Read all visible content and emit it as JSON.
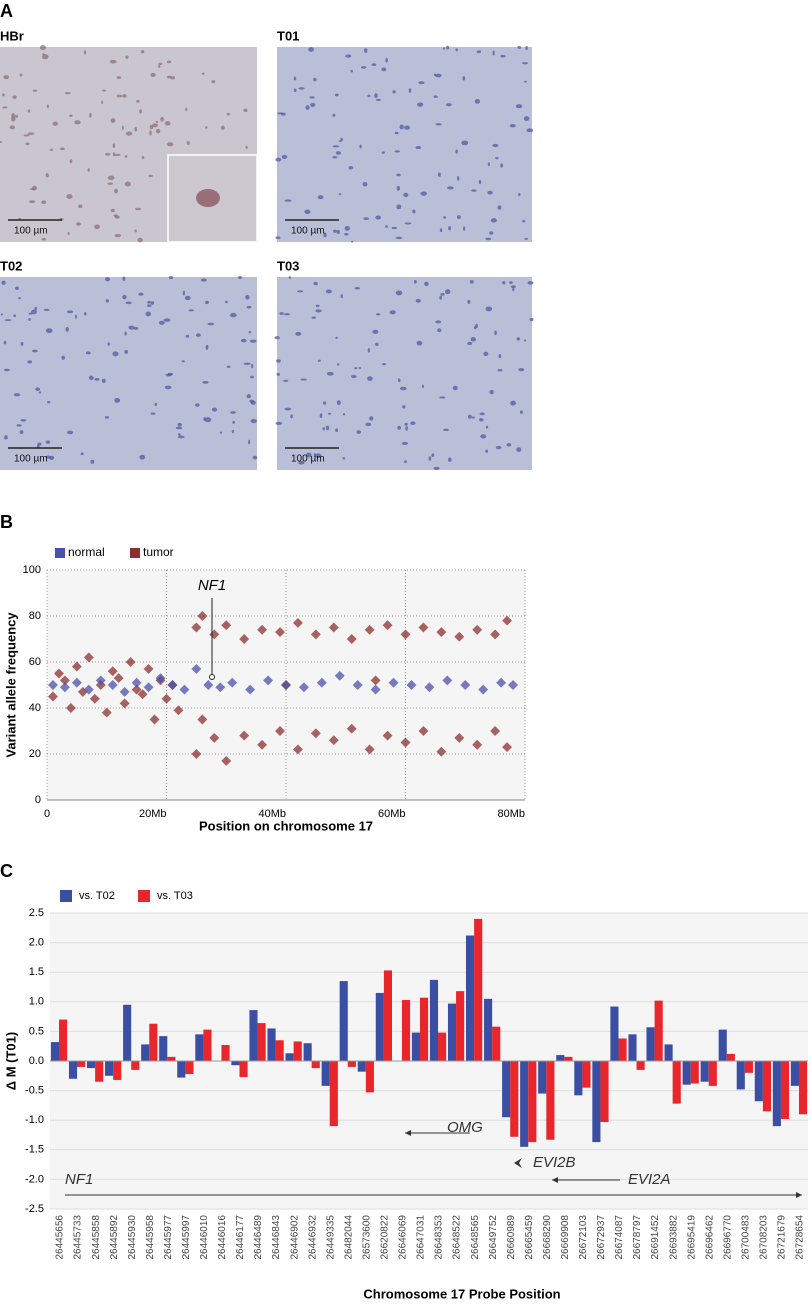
{
  "panel_labels": [
    "A",
    "B",
    "C"
  ],
  "micrographs": [
    {
      "label": "HBr",
      "scale": "100 µm"
    },
    {
      "label": "T01",
      "scale": "100 µm"
    },
    {
      "label": "T02",
      "scale": "100 µm"
    },
    {
      "label": "T03",
      "scale": "100 µm"
    }
  ],
  "chart_data": [
    {
      "type": "scatter",
      "x_label": "Position on chromosome 17",
      "y_label": "Variant allele frequency",
      "annotation": "NF1",
      "xlim": [
        0,
        80
      ],
      "ylim": [
        0,
        100
      ],
      "xticks": [
        0,
        {
          "value": 20,
          "label": "20Mb"
        },
        {
          "value": 40,
          "label": "40Mb"
        },
        {
          "value": 60,
          "label": "60Mb"
        },
        {
          "value": 80,
          "label": "80Mb"
        }
      ],
      "yticks": [
        0,
        20,
        40,
        60,
        80,
        100
      ],
      "grid": true,
      "series": [
        {
          "name": "normal",
          "color": "#4b4fae",
          "x": [
            1,
            3,
            5,
            7,
            9,
            11,
            13,
            15,
            17,
            19,
            21,
            23,
            25,
            27,
            29,
            31,
            34,
            37,
            40,
            43,
            46,
            49,
            52,
            55,
            58,
            61,
            64,
            67,
            70,
            73,
            76,
            78
          ],
          "values": [
            50,
            49,
            51,
            48,
            52,
            50,
            47,
            51,
            49,
            53,
            50,
            48,
            57,
            50,
            49,
            51,
            48,
            52,
            50,
            49,
            51,
            54,
            50,
            48,
            51,
            50,
            49,
            52,
            50,
            48,
            51,
            50
          ]
        },
        {
          "name": "tumor",
          "color": "#8e2f2f",
          "x": [
            1,
            2,
            3,
            4,
            5,
            6,
            7,
            8,
            9,
            10,
            11,
            12,
            13,
            14,
            15,
            16,
            17,
            18,
            19,
            20,
            21,
            22,
            25,
            26,
            28,
            30,
            33,
            36,
            39,
            42,
            45,
            48,
            51,
            54,
            57,
            60,
            63,
            66,
            69,
            72,
            75,
            77,
            25,
            26,
            28,
            30,
            33,
            36,
            39,
            42,
            45,
            48,
            51,
            54,
            57,
            60,
            63,
            66,
            69,
            72,
            75,
            77,
            40,
            55
          ],
          "values": [
            45,
            55,
            52,
            40,
            58,
            47,
            62,
            44,
            50,
            38,
            56,
            53,
            42,
            60,
            48,
            46,
            57,
            35,
            52,
            44,
            50,
            39,
            75,
            80,
            72,
            76,
            70,
            74,
            73,
            77,
            72,
            75,
            70,
            74,
            76,
            72,
            75,
            73,
            71,
            74,
            72,
            78,
            20,
            35,
            27,
            17,
            28,
            24,
            30,
            22,
            29,
            26,
            31,
            22,
            28,
            25,
            30,
            21,
            27,
            24,
            30,
            23,
            50,
            52
          ]
        }
      ]
    },
    {
      "type": "bar",
      "y_label": "Δ M (T01)",
      "x_label": "Chromosome 17 Probe Position",
      "annotations": [
        "OMG",
        "EVI2B",
        "EVI2A",
        "NF1"
      ],
      "categories": [
        "26445656",
        "26445733",
        "26445858",
        "26445892",
        "26445930",
        "26445958",
        "26445977",
        "26445997",
        "26446010",
        "26446016",
        "26446177",
        "26446489",
        "26446843",
        "26446902",
        "26446932",
        "26449335",
        "26482044",
        "26573600",
        "26620822",
        "26646069",
        "26647031",
        "26648353",
        "26648522",
        "26648565",
        "26649752",
        "26660989",
        "26665459",
        "26668290",
        "26669908",
        "26672103",
        "26672937",
        "26674087",
        "26678797",
        "26691452",
        "26693882",
        "26695419",
        "26696462",
        "26696770",
        "26700483",
        "26708203",
        "26721679",
        "26728654"
      ],
      "ylim": [
        -2.5,
        2.5
      ],
      "yticks": [
        -2.5,
        {
          "value": -2,
          "label": "-2.0"
        },
        -1.5,
        {
          "value": -1,
          "label": "-1.0"
        },
        -0.5,
        {
          "value": 0,
          "label": "0.0"
        },
        0.5,
        {
          "value": 1,
          "label": "1.0"
        },
        1.5,
        {
          "value": 2,
          "label": "2.0"
        },
        2.5
      ],
      "grid": true,
      "series": [
        {
          "name": "vs. T02",
          "color": "#3a4fa3",
          "values": [
            0.32,
            -0.3,
            -0.12,
            -0.25,
            0.95,
            0.28,
            0.42,
            -0.28,
            0.45,
            0,
            -0.07,
            0.86,
            0.55,
            0.13,
            0.3,
            -0.42,
            1.35,
            -0.18,
            1.15,
            0,
            0.48,
            1.37,
            0.97,
            2.12,
            1.05,
            -0.95,
            -1.45,
            -0.55,
            0.1,
            -0.58,
            -1.37,
            0.92,
            0.45,
            0.57,
            0.28,
            -0.4,
            -0.35,
            0.53,
            -0.48,
            -0.68,
            -1.1,
            -0.42
          ]
        },
        {
          "name": "vs. T03",
          "color": "#e8262b",
          "values": [
            0.7,
            -0.1,
            -0.35,
            -0.32,
            -0.15,
            0.63,
            0.07,
            -0.22,
            0.53,
            0.27,
            -0.27,
            0.64,
            0.35,
            0.33,
            -0.12,
            -1.1,
            -0.1,
            -0.53,
            1.53,
            1.03,
            1.07,
            0.48,
            1.18,
            2.4,
            0.58,
            -1.28,
            -1.37,
            -1.33,
            0.07,
            -0.45,
            -1.03,
            0.38,
            -0.15,
            1.02,
            -0.72,
            -0.38,
            -0.42,
            0.12,
            -0.2,
            -0.85,
            -0.98,
            -0.9
          ]
        }
      ]
    }
  ]
}
